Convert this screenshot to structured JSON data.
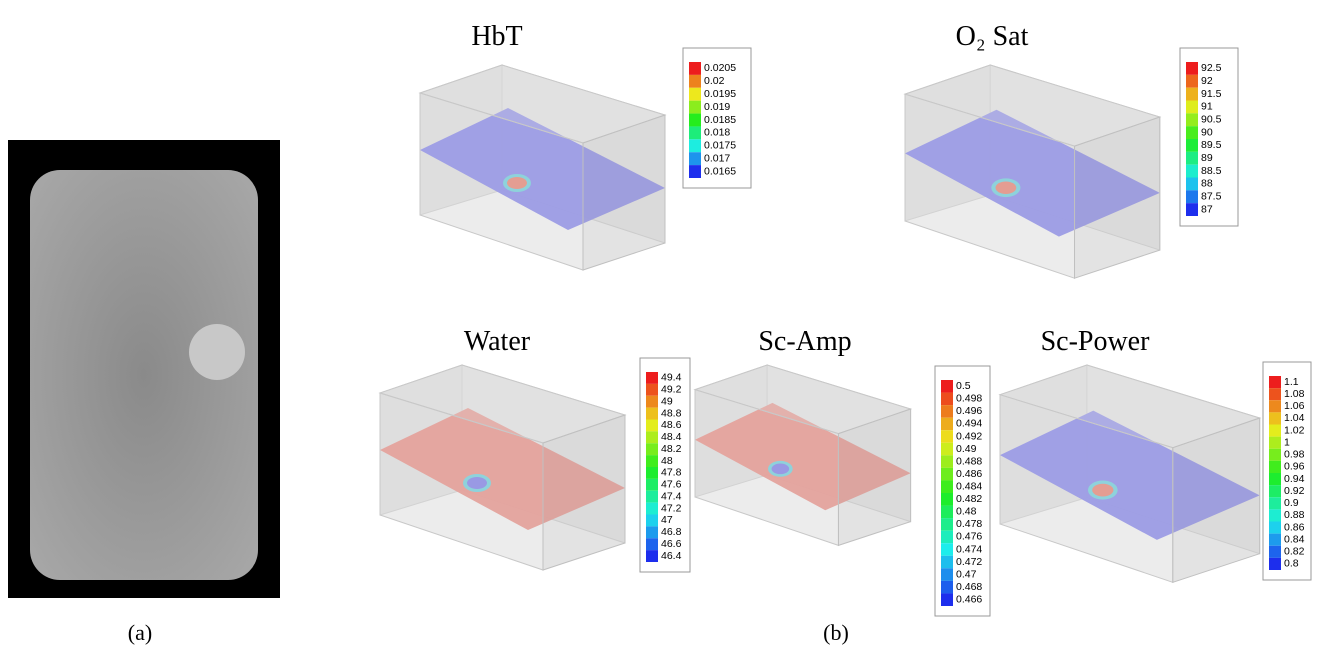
{
  "panels": {
    "a": {
      "label": "(a)"
    },
    "b": {
      "label": "(b)"
    }
  },
  "plots": [
    {
      "title": "HbT",
      "colorbar": [
        "0.0205",
        "0.02",
        "0.0195",
        "0.019",
        "0.0185",
        "0.018",
        "0.0175",
        "0.017",
        "0.0165"
      ]
    },
    {
      "title": "O₂ Sat",
      "colorbar": [
        "92.5",
        "92",
        "91.5",
        "91",
        "90.5",
        "90",
        "89.5",
        "89",
        "88.5",
        "88",
        "87.5",
        "87"
      ]
    },
    {
      "title": "Water",
      "colorbar": [
        "49.4",
        "49.2",
        "49",
        "48.8",
        "48.6",
        "48.4",
        "48.2",
        "48",
        "47.8",
        "47.6",
        "47.4",
        "47.2",
        "47",
        "46.8",
        "46.6",
        "46.4"
      ]
    },
    {
      "title": "Sc-Amp",
      "colorbar": [
        "0.5",
        "0.498",
        "0.496",
        "0.494",
        "0.492",
        "0.49",
        "0.488",
        "0.486",
        "0.484",
        "0.482",
        "0.48",
        "0.478",
        "0.476",
        "0.474",
        "0.472",
        "0.47",
        "0.468",
        "0.466"
      ]
    },
    {
      "title": "Sc-Power",
      "colorbar": [
        "1.1",
        "1.08",
        "1.06",
        "1.04",
        "1.02",
        "1",
        "0.98",
        "0.96",
        "0.94",
        "0.92",
        "0.9",
        "0.88",
        "0.86",
        "0.84",
        "0.82",
        "0.8"
      ]
    }
  ]
}
